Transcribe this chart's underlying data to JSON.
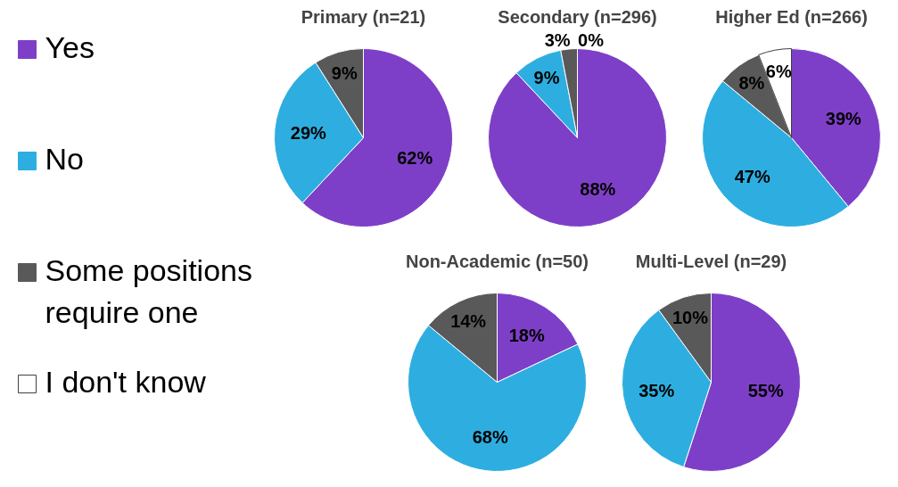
{
  "chart_data": [
    {
      "type": "pie",
      "title": "Primary (n=21)",
      "categories": [
        "Yes",
        "No",
        "Some positions require one",
        "I don't know"
      ],
      "values": [
        62,
        29,
        9,
        0
      ],
      "colors": [
        "#7e3fc8",
        "#2eaee0",
        "#595959",
        "#ffffff"
      ],
      "value_labels": [
        "62%",
        "29%",
        "9%",
        null
      ],
      "legend": "left"
    },
    {
      "type": "pie",
      "title": "Secondary (n=296)",
      "categories": [
        null,
        null,
        null,
        null
      ],
      "values": [
        88,
        9,
        3,
        0
      ],
      "colors": [
        "#7e3fc8",
        "#2eaee0",
        "#595959",
        "#ffffff"
      ],
      "value_labels": [
        "88%",
        "9%",
        "3%",
        "0%"
      ]
    },
    {
      "type": "pie",
      "title": "Higher Ed (n=266)",
      "categories": [
        null,
        null,
        null,
        null
      ],
      "values": [
        39,
        47,
        8,
        6
      ],
      "colors": [
        "#7e3fc8",
        "#2eaee0",
        "#595959",
        "#ffffff"
      ],
      "value_labels": [
        "39%",
        "47%",
        "8%",
        "6%"
      ]
    },
    {
      "type": "pie",
      "title": "Non-Academic (n=50)",
      "categories": [
        null,
        null,
        null
      ],
      "values": [
        18,
        68,
        14
      ],
      "colors": [
        "#7e3fc8",
        "#2eaee0",
        "#595959"
      ],
      "value_labels": [
        "18%",
        "68%",
        "14%"
      ]
    },
    {
      "type": "pie",
      "title": "Multi-Level (n=29)",
      "categories": [
        null,
        null,
        null
      ],
      "values": [
        55,
        35,
        10
      ],
      "colors": [
        "#7e3fc8",
        "#2eaee0",
        "#595959"
      ],
      "value_labels": [
        "55%",
        "35%",
        "10%"
      ]
    }
  ]
}
